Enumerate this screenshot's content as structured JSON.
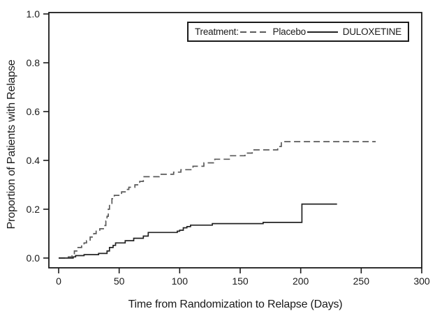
{
  "figure": {
    "background": "#ffffff",
    "frame_color": "#1a1a1a",
    "text_color": "#1a1a1a"
  },
  "chart_data": {
    "type": "line",
    "subtype": "step-after (Kaplan-Meier style cumulative relapse curves)",
    "title": "",
    "xlabel": "Time from Randomization to Relapse (Days)",
    "ylabel": "Proportion of Patients with Relapse",
    "xlim": [
      0,
      300
    ],
    "ylim": [
      0.0,
      1.0
    ],
    "xticks": [
      0,
      50,
      100,
      150,
      200,
      250,
      300
    ],
    "yticks": [
      0.0,
      0.2,
      0.4,
      0.6,
      0.8,
      1.0
    ],
    "ytick_labels": [
      "0.0",
      "0.2",
      "0.4",
      "0.6",
      "0.8",
      "1.0"
    ],
    "grid": false,
    "legend": {
      "title": "Treatment:",
      "position": "framed box, top-right inside plot",
      "entries": [
        {
          "label": "Placebo",
          "line_style": "dashed",
          "color": "#5a5a5a"
        },
        {
          "label": "DULOXETINE",
          "line_style": "solid",
          "color": "#222222"
        }
      ]
    },
    "series": [
      {
        "name": "Placebo",
        "line_style": "dashed",
        "color": "#5a5a5a",
        "points": [
          [
            0,
            0.0
          ],
          [
            8,
            0.005
          ],
          [
            11,
            0.014
          ],
          [
            13,
            0.029
          ],
          [
            16,
            0.043
          ],
          [
            19,
            0.052
          ],
          [
            21,
            0.062
          ],
          [
            23,
            0.071
          ],
          [
            26,
            0.086
          ],
          [
            29,
            0.1
          ],
          [
            31,
            0.11
          ],
          [
            34,
            0.12
          ],
          [
            37,
            0.133
          ],
          [
            39,
            0.152
          ],
          [
            40,
            0.171
          ],
          [
            41,
            0.2
          ],
          [
            42,
            0.224
          ],
          [
            44,
            0.243
          ],
          [
            46,
            0.257
          ],
          [
            52,
            0.271
          ],
          [
            55,
            0.281
          ],
          [
            58,
            0.29
          ],
          [
            63,
            0.3
          ],
          [
            67,
            0.314
          ],
          [
            70,
            0.333
          ],
          [
            83,
            0.343
          ],
          [
            95,
            0.352
          ],
          [
            101,
            0.362
          ],
          [
            111,
            0.376
          ],
          [
            120,
            0.39
          ],
          [
            129,
            0.405
          ],
          [
            142,
            0.419
          ],
          [
            154,
            0.43
          ],
          [
            160,
            0.443
          ],
          [
            181,
            0.457
          ],
          [
            184,
            0.477
          ],
          [
            262,
            0.477
          ]
        ]
      },
      {
        "name": "DULOXETINE",
        "line_style": "solid",
        "color": "#222222",
        "points": [
          [
            0,
            0.0
          ],
          [
            12,
            0.005
          ],
          [
            14,
            0.01
          ],
          [
            21,
            0.014
          ],
          [
            33,
            0.019
          ],
          [
            40,
            0.029
          ],
          [
            42,
            0.043
          ],
          [
            45,
            0.052
          ],
          [
            47,
            0.062
          ],
          [
            55,
            0.071
          ],
          [
            62,
            0.081
          ],
          [
            70,
            0.09
          ],
          [
            74,
            0.105
          ],
          [
            98,
            0.11
          ],
          [
            100,
            0.114
          ],
          [
            103,
            0.124
          ],
          [
            106,
            0.129
          ],
          [
            109,
            0.135
          ],
          [
            127,
            0.141
          ],
          [
            169,
            0.146
          ],
          [
            201,
            0.221
          ],
          [
            230,
            0.221
          ]
        ]
      }
    ]
  }
}
